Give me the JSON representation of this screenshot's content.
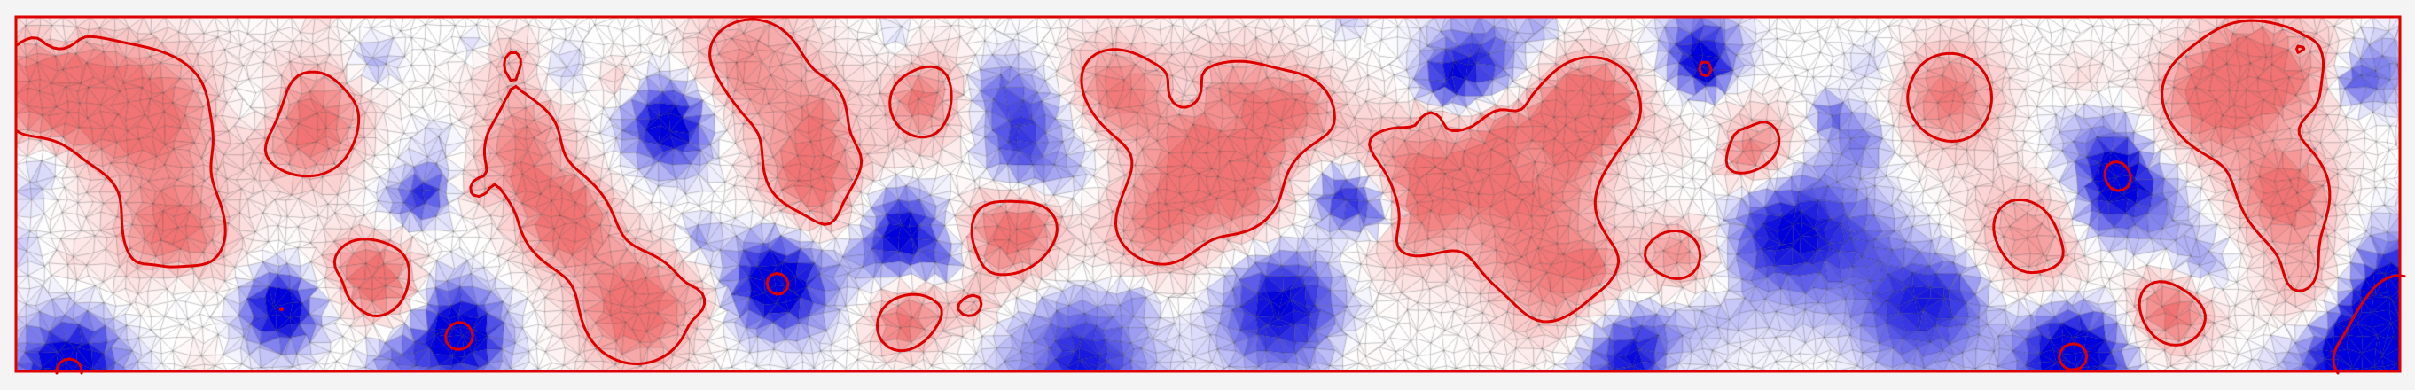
{
  "figure": {
    "kind": "triangulated scalar field with contour outlines",
    "colors": {
      "background": "#f4f4f4",
      "field_low": "#0000dd",
      "field_mid": "#ffffff",
      "field_high": "#ee4444",
      "mesh_line": "#000000",
      "contour": "#dd0000",
      "frame": "#dd0000"
    },
    "features": {
      "red_outlined_regions": 30,
      "solid_blue_regions": 4
    }
  }
}
